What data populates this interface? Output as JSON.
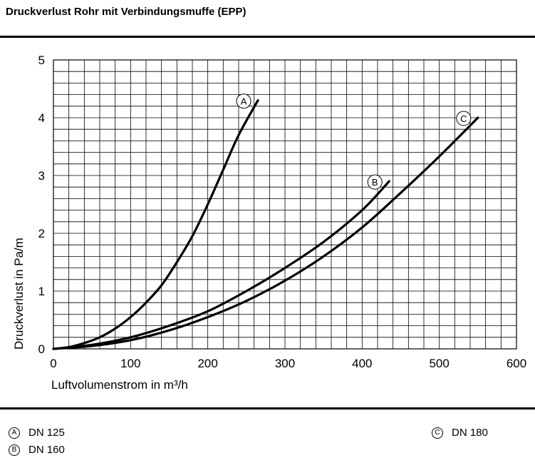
{
  "page": {
    "title": "Druckverlust Rohr mit Verbindungsmuffe (EPP)"
  },
  "chart_data": {
    "type": "line",
    "xlabel": "Luftvolumenstrom in m³/h",
    "ylabel": "Druckverlust in Pa/m",
    "xlim": [
      0,
      600
    ],
    "ylim": [
      0,
      5
    ],
    "xticks": [
      "0",
      "100",
      "200",
      "300",
      "400",
      "500",
      "600"
    ],
    "yticks": [
      "0",
      "1",
      "2",
      "3",
      "4",
      "5"
    ],
    "grid": true,
    "series": [
      {
        "name": "A",
        "x": [
          0,
          20,
          40,
          60,
          80,
          100,
          120,
          140,
          160,
          180,
          200,
          220,
          240,
          265
        ],
        "y": [
          0,
          0.03,
          0.1,
          0.2,
          0.35,
          0.55,
          0.8,
          1.1,
          1.5,
          1.95,
          2.5,
          3.1,
          3.7,
          4.3
        ]
      },
      {
        "name": "B",
        "x": [
          0,
          50,
          100,
          150,
          200,
          250,
          300,
          350,
          400,
          435
        ],
        "y": [
          0,
          0.07,
          0.2,
          0.4,
          0.65,
          1.0,
          1.4,
          1.85,
          2.4,
          2.9
        ]
      },
      {
        "name": "C",
        "x": [
          0,
          50,
          100,
          150,
          200,
          250,
          300,
          350,
          400,
          450,
          500,
          550
        ],
        "y": [
          0,
          0.05,
          0.15,
          0.32,
          0.55,
          0.83,
          1.18,
          1.6,
          2.1,
          2.7,
          3.33,
          4.0
        ]
      }
    ]
  },
  "legend": [
    {
      "badge": "A",
      "label": "DN 125"
    },
    {
      "badge": "B",
      "label": "DN 160"
    },
    {
      "badge": "C",
      "label": "DN 180"
    }
  ]
}
